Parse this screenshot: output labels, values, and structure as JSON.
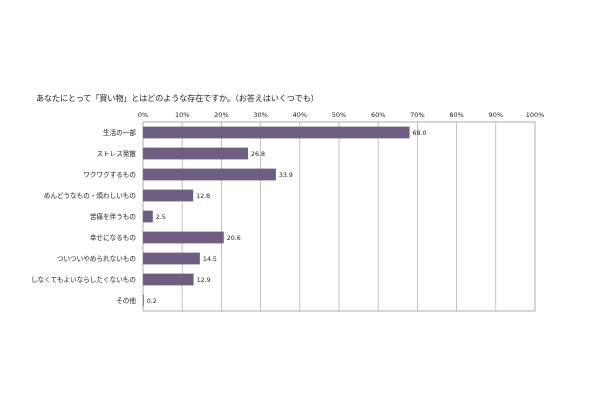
{
  "chart_data": {
    "type": "bar",
    "orientation": "horizontal",
    "title": "あなたにとって「買い物」とはどのような存在ですか。（お答えはいくつでも）",
    "categories": [
      "生活の一部",
      "ストレス発散",
      "ワクワクするもの",
      "めんどうなもの・煩わしいもの",
      "苦痛を伴うもの",
      "幸せになるもの",
      "ついついやめられないもの",
      "しなくてもよいならしたくないもの",
      "その他"
    ],
    "values": [
      68.0,
      26.8,
      33.9,
      12.8,
      2.5,
      20.6,
      14.5,
      12.9,
      0.2
    ],
    "value_labels": [
      "68.0",
      "26.8",
      "33.9",
      "12.8",
      "2.5",
      "20.6",
      "14.5",
      "12.9",
      "0.2"
    ],
    "x_ticks": [
      "0%",
      "10%",
      "20%",
      "30%",
      "40%",
      "50%",
      "60%",
      "70%",
      "80%",
      "90%",
      "100%"
    ],
    "xlim": [
      0,
      100
    ],
    "xlabel": "",
    "ylabel": "",
    "grid": true,
    "legend": "none",
    "bar_color": "#6e5f82"
  }
}
